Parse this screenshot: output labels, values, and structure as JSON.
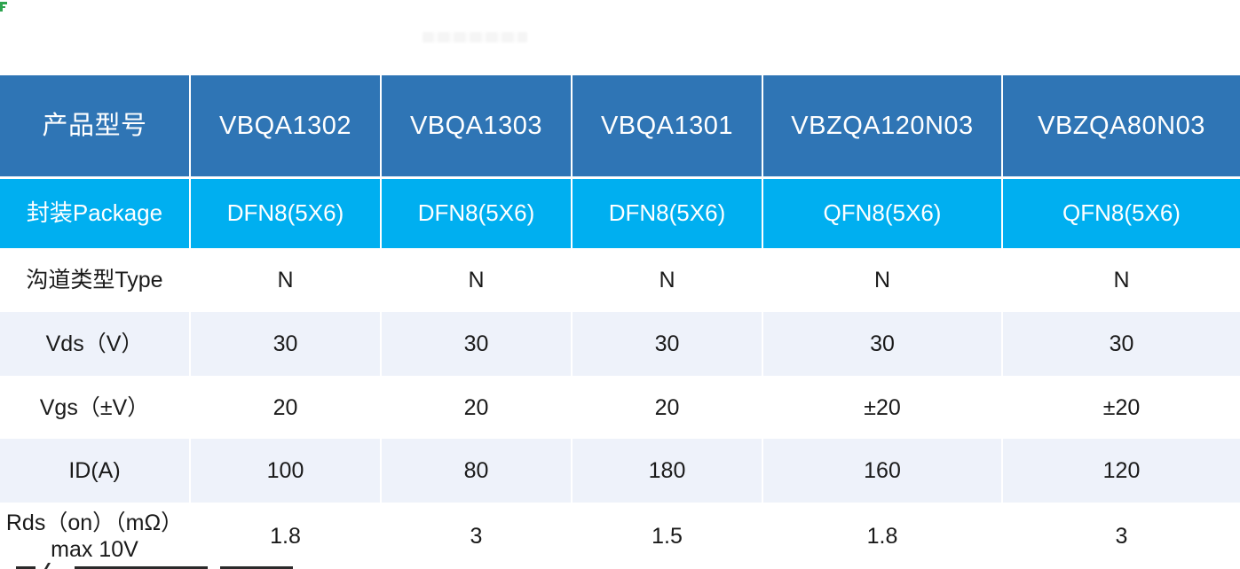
{
  "page": {
    "background_color": "#ffffff"
  },
  "decorations": {
    "corner_mark_color": "#2ea44f",
    "watermark_note": "illegible faint smudge"
  },
  "colors": {
    "header_bg": "#2f75b5",
    "package_row_bg": "#00aff0",
    "light_row_bg": "#eef2fa",
    "white_row_bg": "#ffffff",
    "header_text": "#ffffff",
    "body_text": "#1a1a1a"
  },
  "table": {
    "header": {
      "cells": [
        "产品型号",
        "VBQA1302",
        "VBQA1303",
        "VBQA1301",
        "VBZQA120N03",
        "VBZQA80N03"
      ]
    },
    "package_row": {
      "label": "封装Package",
      "values": [
        "DFN8(5X6)",
        "DFN8(5X6)",
        "DFN8(5X6)",
        "QFN8(5X6)",
        "QFN8(5X6)"
      ]
    },
    "spec_rows": [
      {
        "label": "沟道类型Type",
        "values": [
          "N",
          "N",
          "N",
          "N",
          "N"
        ]
      },
      {
        "label": "Vds（V）",
        "values": [
          "30",
          "30",
          "30",
          "30",
          "30"
        ]
      },
      {
        "label": "Vgs（±V）",
        "values": [
          "20",
          "20",
          "20",
          "±20",
          "±20"
        ]
      },
      {
        "label": "ID(A)",
        "values": [
          "100",
          "80",
          "180",
          "160",
          "120"
        ]
      },
      {
        "label": "Rds（on）（mΩ）max 10V",
        "values": [
          "1.8",
          "3",
          "1.5",
          "1.8",
          "3"
        ]
      }
    ]
  }
}
